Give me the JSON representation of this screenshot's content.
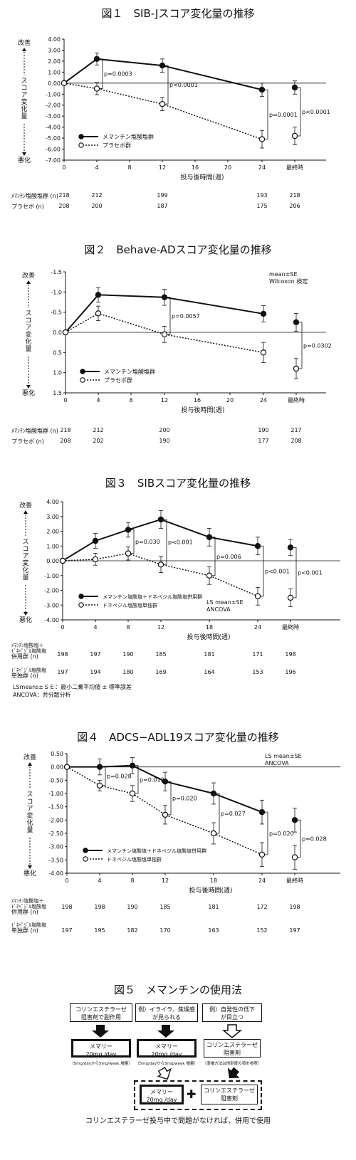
{
  "fig1": {
    "title": "図１　SIB-Jスコア変化量の推移",
    "ylabel": "スコア変化量",
    "y_top": "改善",
    "y_bottom": "悪化",
    "xlabel": "投与後時間(週)",
    "legend": [
      "メマンチン塩酸塩群",
      "プラセボ群"
    ],
    "n_labels": [
      "ﾒﾏﾝﾁﾝ塩酸塩群 (n)",
      "プラセボ (n)"
    ],
    "n_rows": [
      [
        "218",
        "212",
        "199",
        "193",
        "218"
      ],
      [
        "208",
        "200",
        "187",
        "175",
        "206"
      ]
    ]
  },
  "fig2": {
    "title": "図２　Behave-ADスコア変化量の推移",
    "ylabel": "スコア変化量",
    "y_top": "改善",
    "y_bottom": "悪化",
    "xlabel": "投与後時間(週)",
    "legend": [
      "メマンチン塩酸塩群",
      "プラセボ群"
    ],
    "notes": [
      "mean±SE",
      "Wilcoxon 検定"
    ],
    "n_labels": [
      "ﾒﾏﾝﾁﾝ塩酸塩群 (n)",
      "プラセボ (n)"
    ],
    "n_rows": [
      [
        "218",
        "212",
        "200",
        "190",
        "217"
      ],
      [
        "208",
        "202",
        "190",
        "177",
        "208"
      ]
    ]
  },
  "fig3": {
    "title": "図３　SIBスコア変化量の推移",
    "ylabel": "スコア変化量",
    "y_top": "改善",
    "y_bottom": "悪化",
    "xlabel": "投与後時間(週)",
    "legend": [
      "メマンチン塩酸塩＋ドネペジル塩酸塩併用群",
      "ドネペジル塩酸塩単独群"
    ],
    "notes": [
      "LS mean±SE",
      "ANCOVA"
    ],
    "n_labels": [
      [
        "ﾒﾏﾝﾁﾝ塩酸塩＋",
        "ﾄﾞﾈﾍﾟｼﾞﾙ塩酸塩",
        "併用群 (n)"
      ],
      [
        "ﾄﾞﾈﾍﾟｼﾞﾙ塩酸塩",
        "単独群 (n)"
      ]
    ],
    "n_rows": [
      [
        "198",
        "197",
        "190",
        "185",
        "181",
        "171",
        "198"
      ],
      [
        "197",
        "194",
        "180",
        "169",
        "164",
        "153",
        "196"
      ]
    ],
    "footnotes": [
      "LSmeans±ＳＥ：最小二乗平均値 ± 標準誤差",
      "ANCOVA：共分散分析"
    ]
  },
  "fig4": {
    "title": "図４　ADCS−ADL19スコア変化量の推移",
    "ylabel": "スコア変化量",
    "y_top": "改善",
    "y_bottom": "悪化",
    "xlabel": "投与後時間(週)",
    "legend": [
      "メマンチン塩酸塩＋ドネペジル塩酸塩併用群",
      "ドネペジル塩酸塩単独群"
    ],
    "notes": [
      "LS mean±SE",
      "ANCOVA"
    ],
    "n_labels": [
      [
        "ﾒﾏﾝﾁﾝ塩酸塩＋",
        "ﾄﾞﾈﾍﾟｼﾞﾙ塩酸塩",
        "併用群 (n)"
      ],
      [
        "ﾄﾞﾈﾍﾟｼﾞﾙ塩酸塩",
        "単独群 (n)"
      ]
    ],
    "n_rows": [
      [
        "198",
        "198",
        "190",
        "185",
        "181",
        "172",
        "198"
      ],
      [
        "197",
        "195",
        "182",
        "170",
        "163",
        "152",
        "197"
      ]
    ]
  },
  "fig5": {
    "title": "図５　メマンチンの使用法",
    "cols": [
      {
        "head": "コリンエステラーゼ\n阻害剤で副作用",
        "drug": "メマリー\n20mg /day",
        "note": "（5mg/dayから5mg/week 増量）"
      },
      {
        "head": "例）イライラ、焦燥感\nが見られる",
        "drug": "メマリー\n20mg /day",
        "note": "（5mg/dayから5mg/week 増量）"
      },
      {
        "head": "例）自発性の低下\nが目立つ",
        "drug": "コリンエステラーゼ\n阻害剤",
        "note": "（漸増方法は他剤度の項を参照）"
      }
    ],
    "combo": [
      "メマリー\n20mg /day",
      "コリンエステラーゼ\n阻害剤"
    ],
    "plus": "✚",
    "footer": "コリンエステラーゼ投与中で問題がなければ、併用で使用"
  },
  "chart_data": [
    {
      "type": "line",
      "title": "SIB-Jスコア変化量の推移",
      "xlabel": "投与後時間(週)",
      "ylabel": "スコア変化量",
      "x_ticks": [
        "0",
        "4",
        "8",
        "12",
        "16",
        "20",
        "24",
        "最終時"
      ],
      "ylim": [
        -7,
        4
      ],
      "y_ticks": [
        "4.00",
        "3.00",
        "2.00",
        "1.00",
        "0.00",
        "-1.00",
        "-2.00",
        "-3.00",
        "-4.00",
        "-5.00",
        "-6.00",
        "-7.00"
      ],
      "series": [
        {
          "name": "メマンチン塩酸塩群",
          "x": [
            "0",
            "4",
            "12",
            "24",
            "最終時"
          ],
          "values": [
            0.0,
            2.2,
            1.6,
            -0.6,
            -0.4
          ],
          "se": [
            0,
            0.55,
            0.6,
            0.6,
            0.6
          ]
        },
        {
          "name": "プラセボ群",
          "x": [
            "0",
            "4",
            "12",
            "24",
            "最終時"
          ],
          "values": [
            0.0,
            -0.5,
            -1.9,
            -5.1,
            -4.8
          ],
          "se": [
            0,
            0.55,
            0.6,
            0.8,
            0.8
          ]
        }
      ],
      "annotations": [
        "p=0.0003",
        "p<0.0001",
        "p=0.0001",
        "p<0.0001"
      ]
    },
    {
      "type": "line",
      "title": "Behave-ADスコア変化量の推移",
      "xlabel": "投与後時間(週)",
      "ylabel": "スコア変化量",
      "x_ticks": [
        "0",
        "4",
        "8",
        "12",
        "16",
        "20",
        "24",
        "最終時"
      ],
      "ylim": [
        1.5,
        -1.5
      ],
      "y_ticks": [
        "-1.5",
        "-1.0",
        "-0.5",
        "0.0",
        "0.5",
        "1.0",
        "1.5"
      ],
      "series": [
        {
          "name": "メマンチン塩酸塩群",
          "x": [
            "0",
            "4",
            "12",
            "24",
            "最終時"
          ],
          "values": [
            0.0,
            -0.93,
            -0.87,
            -0.46,
            -0.25
          ],
          "se": [
            0,
            0.18,
            0.2,
            0.2,
            0.22
          ]
        },
        {
          "name": "プラセボ群",
          "x": [
            "0",
            "4",
            "12",
            "24",
            "最終時"
          ],
          "values": [
            0.0,
            -0.47,
            0.05,
            0.5,
            0.9
          ],
          "se": [
            0,
            0.18,
            0.2,
            0.25,
            0.25
          ]
        }
      ],
      "annotations": [
        "p=0.0057",
        "p=0.0302"
      ]
    },
    {
      "type": "line",
      "title": "SIBスコア変化量の推移",
      "xlabel": "投与後時間(週)",
      "ylabel": "スコア変化量",
      "x_ticks": [
        "0",
        "4",
        "8",
        "12",
        "18",
        "24",
        "最終時"
      ],
      "ylim": [
        -4,
        4
      ],
      "y_ticks": [
        "4.00",
        "3.00",
        "2.00",
        "1.00",
        "0.00",
        "-1.00",
        "-2.00",
        "-3.00",
        "-4.00"
      ],
      "series": [
        {
          "name": "メマンチン塩酸塩＋ドネペジル塩酸塩併用群",
          "x": [
            "0",
            "4",
            "8",
            "12",
            "18",
            "24",
            "最終時"
          ],
          "values": [
            0.0,
            1.35,
            2.1,
            2.8,
            1.6,
            1.0,
            0.9
          ],
          "se": [
            0,
            0.5,
            0.5,
            0.6,
            0.6,
            0.6,
            0.55
          ]
        },
        {
          "name": "ドネペジル塩酸塩単独群",
          "x": [
            "0",
            "4",
            "8",
            "12",
            "18",
            "24",
            "最終時"
          ],
          "values": [
            0.0,
            0.1,
            0.5,
            -0.25,
            -1.0,
            -2.4,
            -2.5
          ],
          "se": [
            0,
            0.4,
            0.45,
            0.55,
            0.6,
            0.6,
            0.6
          ]
        }
      ],
      "annotations": [
        "p=0.030",
        "p<0.001",
        "p=0.006",
        "p<0.001",
        "p<0.001"
      ]
    },
    {
      "type": "line",
      "title": "ADCS−ADL19スコア変化量の推移",
      "xlabel": "投与後時間(週)",
      "ylabel": "スコア変化量",
      "x_ticks": [
        "0",
        "4",
        "8",
        "12",
        "18",
        "24",
        "最終時"
      ],
      "ylim": [
        -4,
        0.5
      ],
      "y_ticks": [
        "0.50",
        "0.00",
        "-0.50",
        "-1.00",
        "-1.50",
        "-2.00",
        "-2.50",
        "-3.00",
        "-3.50",
        "-4.00"
      ],
      "series": [
        {
          "name": "メマンチン塩酸塩＋ドネペジル塩酸塩併用群",
          "x": [
            "0",
            "4",
            "8",
            "12",
            "18",
            "24",
            "最終時"
          ],
          "values": [
            0.0,
            0.0,
            0.05,
            -0.55,
            -1.0,
            -1.7,
            -2.0
          ],
          "se": [
            0,
            0.3,
            0.3,
            0.35,
            0.4,
            0.45,
            0.45
          ]
        },
        {
          "name": "ドネペジル塩酸塩単独群",
          "x": [
            "0",
            "4",
            "8",
            "12",
            "18",
            "24",
            "最終時"
          ],
          "values": [
            0.0,
            -0.7,
            -1.0,
            -1.8,
            -2.5,
            -3.3,
            -3.4
          ],
          "se": [
            0,
            0.2,
            0.3,
            0.35,
            0.4,
            0.45,
            0.45
          ]
        }
      ],
      "annotations": [
        "p=0.028",
        "p=0.012",
        "p=0.020",
        "p=0.027",
        "p=0.020",
        "p=0.028"
      ]
    }
  ]
}
